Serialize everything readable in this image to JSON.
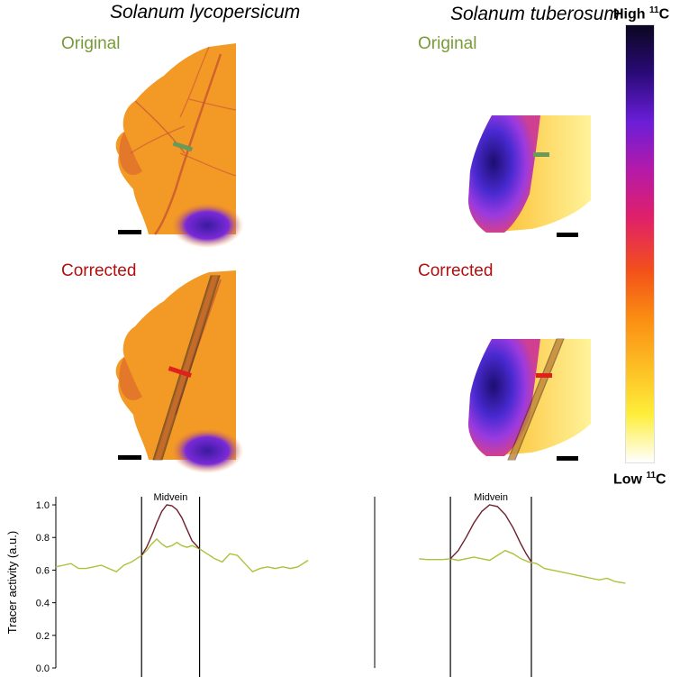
{
  "species": {
    "left": "Solanum lycopersicum",
    "right": "Solanum tuberosum"
  },
  "panel_labels": {
    "original": "Original",
    "corrected": "Corrected"
  },
  "colorbar": {
    "high_prefix": "High",
    "low_prefix": "Low",
    "isotope_mass": "11",
    "isotope_symbol": "C",
    "stops": [
      "#0b0720",
      "#2a0a78",
      "#6a1ed8",
      "#b41aa8",
      "#e0206a",
      "#f2501a",
      "#fb8d12",
      "#fdbd24",
      "#feee3a",
      "#ffffff"
    ]
  },
  "colors": {
    "original_line": "#a9c33b",
    "corrected_line": "#6e1f2c",
    "original_label": "#7a9a3a",
    "corrected_label": "#b01010"
  },
  "chart_data": [
    {
      "type": "line",
      "title": "Solanum lycopersicum",
      "ylabel": "Tracer activity (a.u.)",
      "xlabel": "",
      "ylim": [
        0,
        1.05
      ],
      "xlim": [
        0,
        100
      ],
      "yticks": [
        "0.0",
        "0.2",
        "0.4",
        "0.6",
        "0.8",
        "1.0"
      ],
      "ytick_values": [
        0,
        0.2,
        0.4,
        0.6,
        0.8,
        1.0
      ],
      "annotation": "Midvein",
      "midvein_bounds": [
        34,
        57
      ],
      "series": [
        {
          "name": "Original",
          "x": [
            0,
            3,
            6,
            9,
            12,
            15,
            18,
            21,
            24,
            27,
            30,
            32,
            34,
            36,
            38,
            40,
            42,
            44,
            46,
            48,
            50,
            52,
            54,
            57,
            60,
            63,
            66,
            69,
            72,
            75,
            78,
            81,
            84,
            87,
            90,
            93,
            96,
            100
          ],
          "y": [
            0.62,
            0.63,
            0.64,
            0.61,
            0.61,
            0.62,
            0.63,
            0.61,
            0.59,
            0.63,
            0.65,
            0.67,
            0.69,
            0.72,
            0.76,
            0.79,
            0.76,
            0.74,
            0.75,
            0.77,
            0.75,
            0.74,
            0.75,
            0.73,
            0.7,
            0.67,
            0.65,
            0.7,
            0.69,
            0.64,
            0.59,
            0.61,
            0.62,
            0.61,
            0.62,
            0.61,
            0.62,
            0.66
          ]
        },
        {
          "name": "Corrected",
          "x": [
            34,
            36,
            38,
            40,
            42,
            44,
            46,
            48,
            50,
            52,
            54,
            57
          ],
          "y": [
            0.69,
            0.74,
            0.81,
            0.89,
            0.96,
            1.0,
            0.995,
            0.97,
            0.92,
            0.85,
            0.78,
            0.73
          ]
        }
      ]
    },
    {
      "type": "line",
      "title": "Solanum tuberosum",
      "ylabel": "",
      "xlabel": "",
      "ylim": [
        0,
        1.05
      ],
      "xlim": [
        0,
        100
      ],
      "annotation": "Midvein",
      "midvein_bounds": [
        29,
        60
      ],
      "series": [
        {
          "name": "Original",
          "x": [
            17,
            20,
            23,
            26,
            29,
            32,
            35,
            38,
            41,
            44,
            47,
            50,
            53,
            56,
            59,
            62,
            65,
            68,
            71,
            74,
            77,
            80,
            83,
            86,
            89,
            92,
            96
          ],
          "y": [
            0.67,
            0.665,
            0.665,
            0.665,
            0.67,
            0.66,
            0.67,
            0.68,
            0.67,
            0.66,
            0.69,
            0.72,
            0.7,
            0.67,
            0.65,
            0.64,
            0.61,
            0.6,
            0.59,
            0.58,
            0.57,
            0.56,
            0.55,
            0.54,
            0.55,
            0.53,
            0.52
          ]
        },
        {
          "name": "Corrected",
          "x": [
            29,
            32,
            35,
            38,
            41,
            44,
            47,
            50,
            53,
            56,
            58,
            60
          ],
          "y": [
            0.67,
            0.72,
            0.8,
            0.89,
            0.96,
            1.0,
            0.99,
            0.94,
            0.86,
            0.76,
            0.7,
            0.65
          ]
        }
      ]
    }
  ]
}
